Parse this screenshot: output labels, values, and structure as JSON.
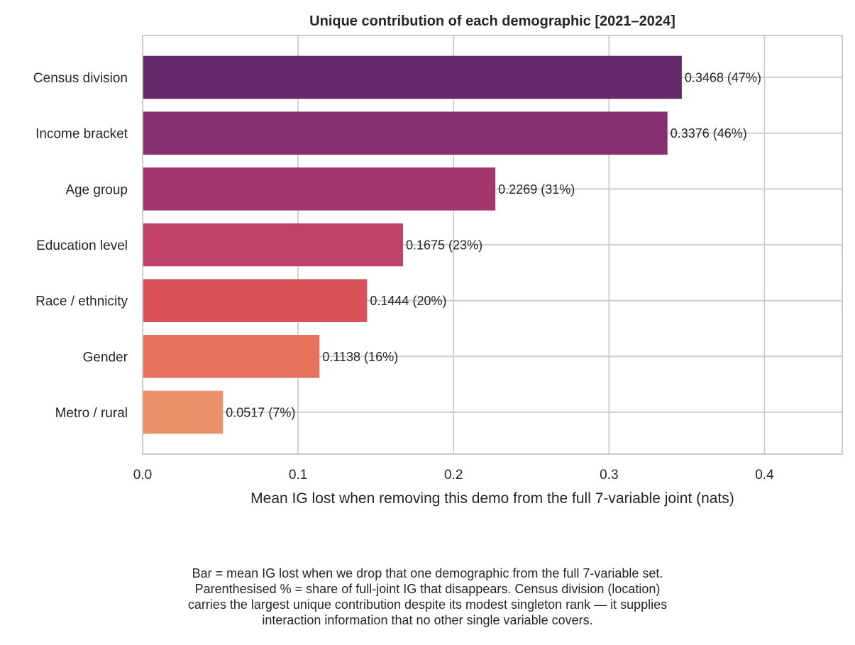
{
  "chart_data": {
    "type": "bar",
    "orientation": "horizontal",
    "title": "Unique contribution of each demographic  [2021–2024]",
    "xlabel": "Mean IG lost when removing this demo from the full 7-variable joint (nats)",
    "ylabel": "",
    "xlim": [
      0,
      0.45
    ],
    "xticks": [
      0.0,
      0.1,
      0.2,
      0.3,
      0.4
    ],
    "xtick_labels": [
      "0.0",
      "0.1",
      "0.2",
      "0.3",
      "0.4"
    ],
    "grid": true,
    "categories": [
      "Census division",
      "Income bracket",
      "Age group",
      "Education level",
      "Race / ethnicity",
      "Gender",
      "Metro / rural"
    ],
    "values": [
      0.3468,
      0.3376,
      0.2269,
      0.1675,
      0.1444,
      0.1138,
      0.0517
    ],
    "data_labels": [
      "0.3468  (47%)",
      "0.3376  (46%)",
      "0.2269  (31%)",
      "0.1675  (23%)",
      "0.1444  (20%)",
      "0.1138  (16%)",
      "0.0517  (7%)"
    ],
    "colors": [
      "#66296a",
      "#852f6f",
      "#a3376d",
      "#c24166",
      "#da5259",
      "#e6715d",
      "#eb926d"
    ]
  },
  "caption": {
    "lines": [
      "Bar = mean IG lost when we drop that one demographic from the full 7-variable set.",
      "Parenthesised % = share of full-joint IG that disappears. Census division (location)",
      "carries the largest unique contribution despite its modest singleton rank — it supplies",
      "interaction information that no other single variable covers."
    ]
  }
}
